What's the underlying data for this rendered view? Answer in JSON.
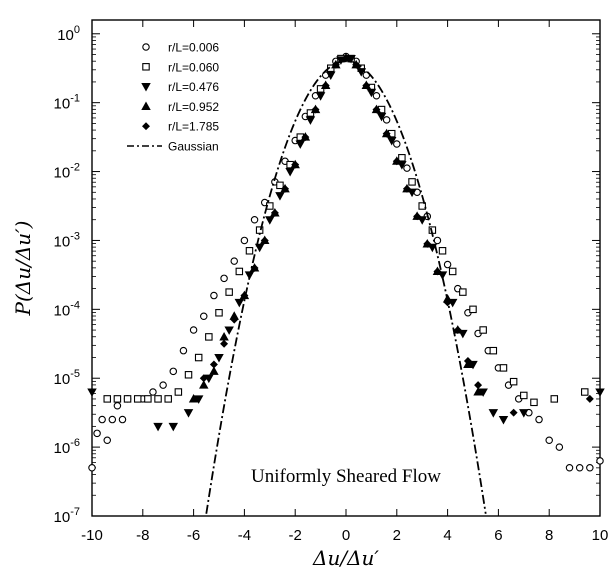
{
  "chart_data": {
    "type": "scatter",
    "xlabel": "Δu/Δu′",
    "ylabel": "P(Δu/Δu′)",
    "xlim": [
      -10,
      10
    ],
    "ylim_log10": [
      -7,
      0.2
    ],
    "y_scale": "log",
    "x_ticks": [
      "-10",
      "-8",
      "-6",
      "-4",
      "-2",
      "0",
      "2",
      "4",
      "6",
      "8",
      "10"
    ],
    "x_tick_values": [
      -10,
      -8,
      -6,
      -4,
      -2,
      0,
      2,
      4,
      6,
      8,
      10
    ],
    "y_ticks": [
      {
        "base": "10",
        "exp": "0",
        "value": 0
      },
      {
        "base": "10",
        "exp": "-1",
        "value": -1
      },
      {
        "base": "10",
        "exp": "-2",
        "value": -2
      },
      {
        "base": "10",
        "exp": "-3",
        "value": -3
      },
      {
        "base": "10",
        "exp": "-4",
        "value": -4
      },
      {
        "base": "10",
        "exp": "-5",
        "value": -5
      },
      {
        "base": "10",
        "exp": "-6",
        "value": -6
      },
      {
        "base": "10",
        "exp": "-7",
        "value": -7
      }
    ],
    "annotation": "Uniformly Sheared Flow",
    "legend_position": "top-left",
    "series": [
      {
        "name": "r/L=0.006",
        "marker": "circle",
        "points": [
          [
            -10,
            -6.3
          ],
          [
            -9.8,
            -5.8
          ],
          [
            -9.6,
            -5.6
          ],
          [
            -9.4,
            -5.9
          ],
          [
            -9.2,
            -5.6
          ],
          [
            -9.0,
            -5.4
          ],
          [
            -8.8,
            -5.6
          ],
          [
            -8.6,
            -5.3
          ],
          [
            -8.0,
            -5.3
          ],
          [
            -7.6,
            -5.2
          ],
          [
            -7.2,
            -5.1
          ],
          [
            -6.8,
            -4.9
          ],
          [
            -6.4,
            -4.6
          ],
          [
            -6.0,
            -4.3
          ],
          [
            -5.6,
            -4.1
          ],
          [
            -5.2,
            -3.8
          ],
          [
            -4.8,
            -3.55
          ],
          [
            -4.4,
            -3.3
          ],
          [
            -4.0,
            -3.0
          ],
          [
            -3.6,
            -2.7
          ],
          [
            -3.2,
            -2.45
          ],
          [
            -2.8,
            -2.15
          ],
          [
            -2.4,
            -1.85
          ],
          [
            -2.0,
            -1.55
          ],
          [
            -1.6,
            -1.2
          ],
          [
            -1.2,
            -0.9
          ],
          [
            -0.8,
            -0.6
          ],
          [
            -0.4,
            -0.4
          ],
          [
            0.0,
            -0.33
          ],
          [
            0.4,
            -0.4
          ],
          [
            0.8,
            -0.6
          ],
          [
            1.2,
            -0.9
          ],
          [
            1.6,
            -1.25
          ],
          [
            2.0,
            -1.6
          ],
          [
            2.4,
            -1.95
          ],
          [
            2.8,
            -2.3
          ],
          [
            3.2,
            -2.65
          ],
          [
            3.6,
            -3.0
          ],
          [
            4.0,
            -3.35
          ],
          [
            4.4,
            -3.7
          ],
          [
            4.8,
            -4.05
          ],
          [
            5.2,
            -4.35
          ],
          [
            5.6,
            -4.6
          ],
          [
            6.0,
            -4.85
          ],
          [
            6.4,
            -5.1
          ],
          [
            6.8,
            -5.3
          ],
          [
            7.2,
            -5.5
          ],
          [
            7.6,
            -5.6
          ],
          [
            8.0,
            -5.9
          ],
          [
            8.4,
            -6.0
          ],
          [
            8.8,
            -6.3
          ],
          [
            9.2,
            -6.3
          ],
          [
            9.6,
            -6.3
          ],
          [
            10.0,
            -6.2
          ]
        ]
      },
      {
        "name": "r/L=0.060",
        "marker": "square",
        "points": [
          [
            -9.4,
            -5.3
          ],
          [
            -9.0,
            -5.3
          ],
          [
            -8.6,
            -5.3
          ],
          [
            -8.2,
            -5.3
          ],
          [
            -7.8,
            -5.3
          ],
          [
            -7.4,
            -5.3
          ],
          [
            -7.0,
            -5.3
          ],
          [
            -6.6,
            -5.2
          ],
          [
            -6.2,
            -4.95
          ],
          [
            -5.8,
            -4.7
          ],
          [
            -5.4,
            -4.4
          ],
          [
            -5.0,
            -4.05
          ],
          [
            -4.6,
            -3.75
          ],
          [
            -4.2,
            -3.45
          ],
          [
            -3.8,
            -3.15
          ],
          [
            -3.4,
            -2.85
          ],
          [
            -3.0,
            -2.5
          ],
          [
            -2.6,
            -2.2
          ],
          [
            -2.2,
            -1.9
          ],
          [
            -1.8,
            -1.5
          ],
          [
            -1.4,
            -1.15
          ],
          [
            -1.0,
            -0.8
          ],
          [
            -0.6,
            -0.5
          ],
          [
            -0.2,
            -0.36
          ],
          [
            0.2,
            -0.36
          ],
          [
            0.6,
            -0.5
          ],
          [
            1.0,
            -0.78
          ],
          [
            1.4,
            -1.1
          ],
          [
            1.8,
            -1.45
          ],
          [
            2.2,
            -1.8
          ],
          [
            2.6,
            -2.15
          ],
          [
            3.0,
            -2.5
          ],
          [
            3.4,
            -2.85
          ],
          [
            3.8,
            -3.15
          ],
          [
            4.2,
            -3.45
          ],
          [
            4.6,
            -3.75
          ],
          [
            5.0,
            -4.0
          ],
          [
            5.4,
            -4.3
          ],
          [
            5.8,
            -4.6
          ],
          [
            6.2,
            -4.85
          ],
          [
            6.6,
            -5.05
          ],
          [
            7.0,
            -5.25
          ],
          [
            7.4,
            -5.35
          ],
          [
            8.2,
            -5.3
          ],
          [
            9.4,
            -5.2
          ]
        ]
      },
      {
        "name": "r/L=0.476",
        "marker": "triangle-down",
        "points": [
          [
            -10,
            -5.2
          ],
          [
            -7.4,
            -5.7
          ],
          [
            -6.8,
            -5.7
          ],
          [
            -6.2,
            -5.5
          ],
          [
            -5.8,
            -5.3
          ],
          [
            -5.4,
            -5.0
          ],
          [
            -5.0,
            -4.7
          ],
          [
            -4.6,
            -4.3
          ],
          [
            -4.2,
            -3.9
          ],
          [
            -3.8,
            -3.5
          ],
          [
            -3.4,
            -3.1
          ],
          [
            -3.0,
            -2.7
          ],
          [
            -2.6,
            -2.35
          ],
          [
            -2.2,
            -2.0
          ],
          [
            -1.8,
            -1.6
          ],
          [
            -1.4,
            -1.25
          ],
          [
            -1.0,
            -0.9
          ],
          [
            -0.6,
            -0.6
          ],
          [
            -0.2,
            -0.38
          ],
          [
            0.2,
            -0.36
          ],
          [
            0.6,
            -0.55
          ],
          [
            1.0,
            -0.85
          ],
          [
            1.4,
            -1.2
          ],
          [
            1.8,
            -1.55
          ],
          [
            2.2,
            -1.9
          ],
          [
            2.6,
            -2.3
          ],
          [
            3.0,
            -2.7
          ],
          [
            3.4,
            -3.1
          ],
          [
            3.8,
            -3.5
          ],
          [
            4.2,
            -3.9
          ],
          [
            4.6,
            -4.35
          ],
          [
            5.0,
            -4.8
          ],
          [
            5.4,
            -5.2
          ],
          [
            5.8,
            -5.5
          ],
          [
            6.2,
            -5.6
          ],
          [
            7.0,
            -5.5
          ],
          [
            10,
            -5.2
          ]
        ]
      },
      {
        "name": "r/L=0.952",
        "marker": "triangle-up",
        "points": [
          [
            -6.0,
            -5.3
          ],
          [
            -5.6,
            -5.1
          ],
          [
            -5.2,
            -4.9
          ],
          [
            -4.8,
            -4.4
          ],
          [
            -4.4,
            -4.1
          ],
          [
            -4.0,
            -3.8
          ],
          [
            -3.6,
            -3.4
          ],
          [
            -3.2,
            -3.0
          ],
          [
            -2.8,
            -2.6
          ],
          [
            -2.4,
            -2.25
          ],
          [
            -2.0,
            -1.9
          ],
          [
            -1.6,
            -1.5
          ],
          [
            -1.2,
            -1.1
          ],
          [
            -0.8,
            -0.75
          ],
          [
            -0.4,
            -0.45
          ],
          [
            0.0,
            -0.35
          ],
          [
            0.4,
            -0.45
          ],
          [
            0.8,
            -0.75
          ],
          [
            1.2,
            -1.1
          ],
          [
            1.6,
            -1.45
          ],
          [
            2.0,
            -1.85
          ],
          [
            2.4,
            -2.25
          ],
          [
            2.8,
            -2.65
          ],
          [
            3.2,
            -3.05
          ],
          [
            3.6,
            -3.45
          ],
          [
            4.0,
            -3.85
          ],
          [
            4.4,
            -4.3
          ],
          [
            4.8,
            -4.8
          ],
          [
            5.2,
            -5.2
          ]
        ]
      },
      {
        "name": "r/L=1.785",
        "marker": "diamond",
        "points": [
          [
            -5.6,
            -5.0
          ],
          [
            -5.2,
            -4.8
          ],
          [
            -4.8,
            -4.5
          ],
          [
            -4.4,
            -4.15
          ],
          [
            -4.0,
            -3.8
          ],
          [
            -3.6,
            -3.4
          ],
          [
            -3.2,
            -3.0
          ],
          [
            -2.8,
            -2.6
          ],
          [
            -2.4,
            -2.25
          ],
          [
            -2.0,
            -1.9
          ],
          [
            -1.6,
            -1.5
          ],
          [
            -1.2,
            -1.1
          ],
          [
            -0.8,
            -0.75
          ],
          [
            -0.4,
            -0.45
          ],
          [
            0.0,
            -0.36
          ],
          [
            0.4,
            -0.45
          ],
          [
            0.8,
            -0.75
          ],
          [
            1.2,
            -1.1
          ],
          [
            1.6,
            -1.45
          ],
          [
            2.0,
            -1.85
          ],
          [
            2.4,
            -2.25
          ],
          [
            2.8,
            -2.65
          ],
          [
            3.2,
            -3.05
          ],
          [
            3.6,
            -3.45
          ],
          [
            4.0,
            -3.9
          ],
          [
            4.4,
            -4.3
          ],
          [
            4.8,
            -4.75
          ],
          [
            5.2,
            -5.1
          ],
          [
            6.6,
            -5.5
          ],
          [
            9.6,
            -5.3
          ]
        ]
      },
      {
        "name": "Gaussian",
        "marker": "dash-dot-line",
        "function": "gaussian",
        "mean": 0,
        "std": 1
      }
    ]
  }
}
